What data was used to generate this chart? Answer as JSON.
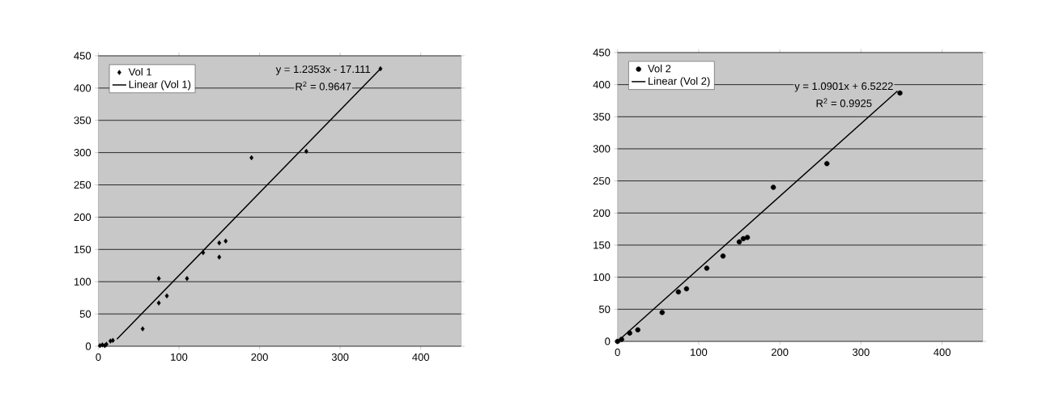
{
  "chart_data": [
    {
      "type": "scatter",
      "xlim": [
        0,
        450
      ],
      "ylim": [
        0,
        450
      ],
      "xticks": [
        0,
        100,
        200,
        300,
        400
      ],
      "yticks": [
        0,
        50,
        100,
        150,
        200,
        250,
        300,
        350,
        400,
        450
      ],
      "grid": "y",
      "legend": "top left",
      "marker": "diamond",
      "annotations": [
        "y = 1.2353x - 17.111",
        "R$^{2}$ = 0.9647"
      ],
      "series": [
        {
          "name": "Vol 1",
          "color": "#000000",
          "x": [
            2,
            5,
            8,
            10,
            15,
            18,
            55,
            75,
            75,
            85,
            110,
            130,
            150,
            150,
            158,
            190,
            258,
            350
          ],
          "values": [
            1,
            2,
            1,
            3,
            8,
            9,
            27,
            105,
            67,
            78,
            105,
            145,
            160,
            138,
            163,
            292,
            302,
            430
          ]
        },
        {
          "name": "Linear (Vol 1)",
          "type": "line",
          "marker": "none",
          "color": "#000000",
          "x": [
            23,
            350
          ],
          "values": [
            11,
            430
          ]
        }
      ]
    },
    {
      "type": "scatter",
      "xlim": [
        0,
        450
      ],
      "ylim": [
        0,
        450
      ],
      "xticks": [
        0,
        100,
        200,
        300,
        400
      ],
      "yticks": [
        0,
        50,
        100,
        150,
        200,
        250,
        300,
        350,
        400,
        450
      ],
      "grid": "y",
      "legend": "top left",
      "marker": "circle",
      "annotations": [
        "y = 1.0901x + 6.5222",
        "R$^{2}$ = 0.9925"
      ],
      "series": [
        {
          "name": "Vol 2",
          "color": "#000000",
          "x": [
            0,
            5,
            15,
            25,
            55,
            75,
            85,
            110,
            130,
            150,
            155,
            160,
            192,
            258,
            348
          ],
          "values": [
            0,
            3,
            13,
            18,
            45,
            77,
            82,
            114,
            133,
            155,
            160,
            162,
            240,
            277,
            387
          ]
        },
        {
          "name": "Linear (Vol 2)",
          "type": "line",
          "marker": "none",
          "color": "#000000",
          "x": [
            0,
            345
          ],
          "values": [
            0,
            390
          ]
        }
      ]
    }
  ]
}
